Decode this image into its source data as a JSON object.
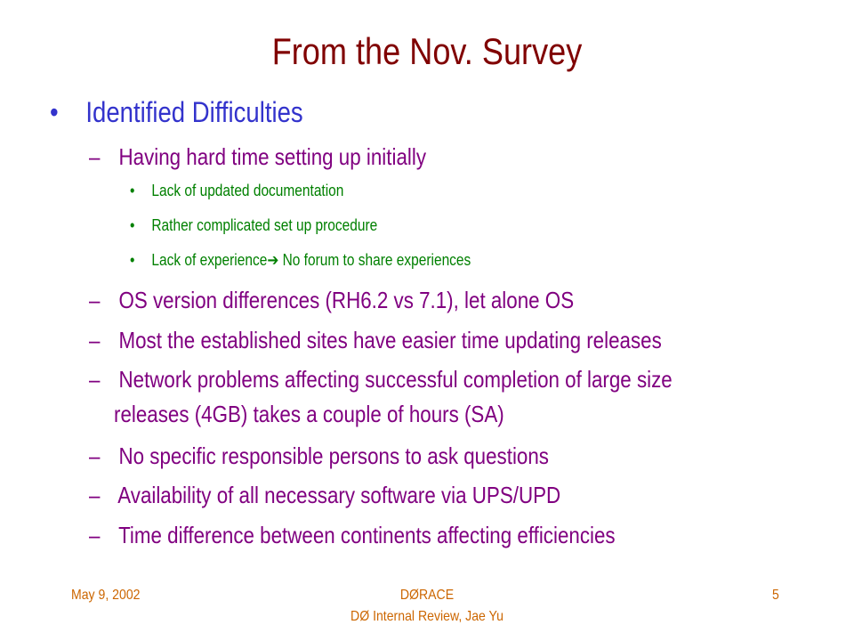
{
  "slide": {
    "title": "From the Nov. Survey",
    "level1": {
      "bullet": "•",
      "text": "Identified Difficulties"
    },
    "item_a": {
      "dash": "–",
      "text": "Having hard time setting up initially"
    },
    "sub1": {
      "bullet": "•",
      "text": "Lack of updated documentation"
    },
    "sub2": {
      "bullet": "•",
      "text": "Rather complicated set up procedure"
    },
    "sub3": {
      "bullet": "•",
      "text_before": "Lack of experience",
      "arrow": "➔",
      "text_after": " No forum to share experiences"
    },
    "item_b": {
      "dash": "–",
      "text": "OS version differences (RH6.2 vs 7.1), let alone OS"
    },
    "item_c": {
      "dash": "–",
      "text": "Most the established sites have easier time updating releases"
    },
    "item_d": {
      "dash": "–",
      "text_line1": "Network problems affecting successful completion of large size",
      "text_line2": "releases (4GB) takes a couple of hours (SA)"
    },
    "item_e": {
      "dash": "–",
      "text": "No specific responsible persons to ask questions"
    },
    "item_f": {
      "dash": "–",
      "text": "Availability of all necessary software via UPS/UPD"
    },
    "item_g": {
      "dash": "–",
      "text": "Time difference between continents affecting efficiencies"
    }
  },
  "footer": {
    "date": "May 9, 2002",
    "center_line1": "DØRACE",
    "center_line2": "DØ Internal Review, Jae Yu",
    "page_number": "5"
  },
  "colors": {
    "title": "#800000",
    "level1": "#3333cc",
    "level2": "#800080",
    "level3": "#008000",
    "footer": "#cc6600"
  }
}
